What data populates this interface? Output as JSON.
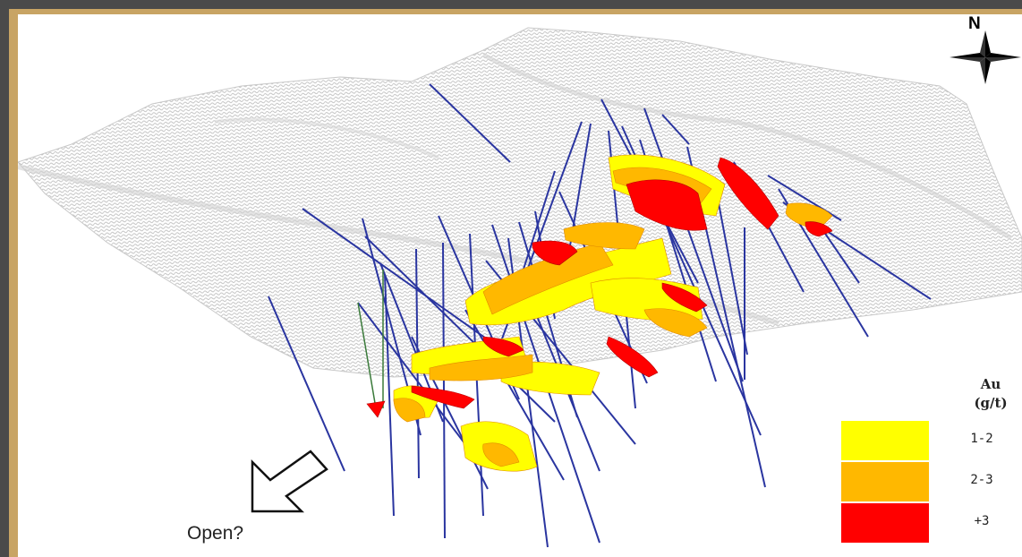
{
  "north_label": "N",
  "open_label": "Open?",
  "legend": {
    "title_line1": "Au",
    "title_line2": "(g/t)",
    "items": [
      {
        "label": "1-2",
        "color": "#ffff00"
      },
      {
        "label": "2-3",
        "color": "#ffb800"
      },
      {
        "label": "+3",
        "color": "#ff0000"
      }
    ]
  },
  "colors": {
    "drillhole": "#2a35a0",
    "drillhole_alt": "#3a7a3a",
    "surface_mesh": "#b5b5b5",
    "frame": "#c8a464",
    "outer": "#4a4a4a"
  },
  "icons": [
    "north-arrow-icon",
    "open-direction-arrow-icon"
  ]
}
